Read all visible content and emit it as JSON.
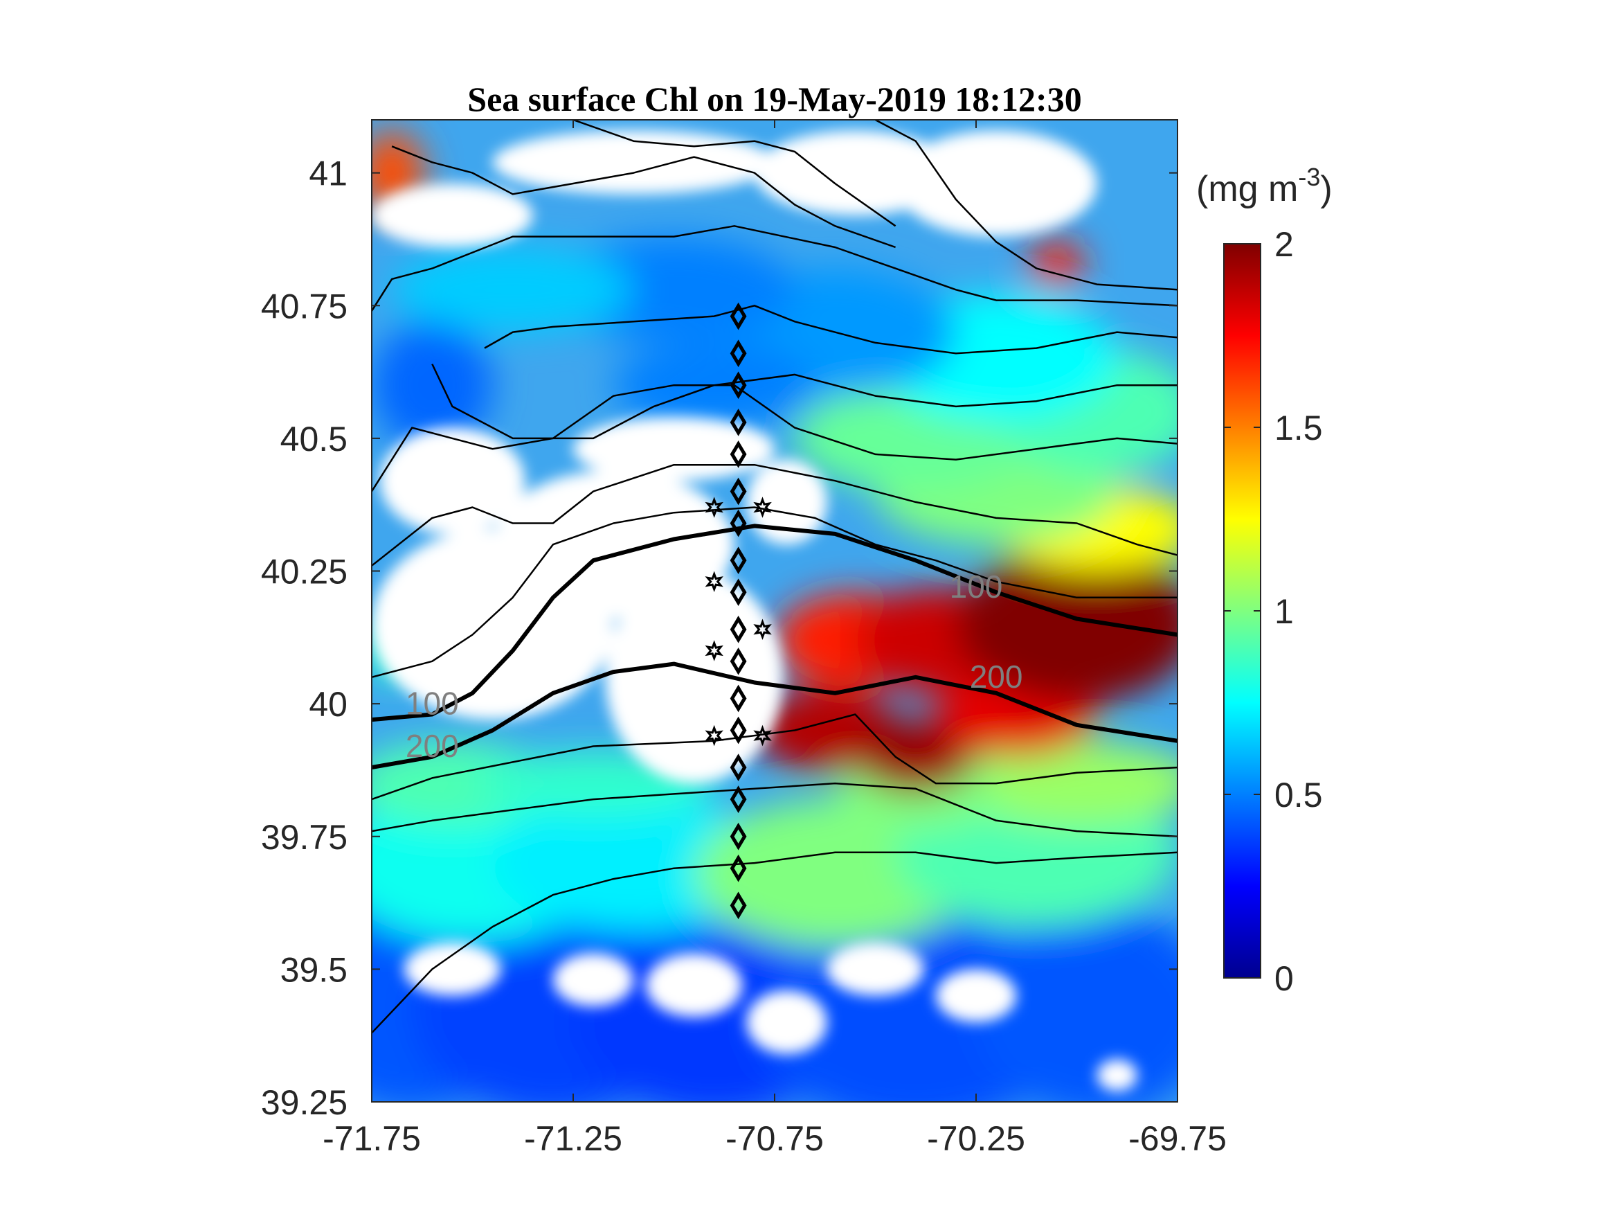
{
  "chart_data": {
    "type": "heatmap",
    "title": "Sea surface Chl on 19-May-2019 18:12:30",
    "xlabel": "",
    "ylabel": "",
    "xlim": [
      -71.75,
      -69.75
    ],
    "ylim": [
      39.25,
      41.1
    ],
    "x_ticks": [
      -71.75,
      -71.25,
      -70.75,
      -70.25,
      -69.75
    ],
    "x_tick_labels": [
      "-71.75",
      "-71.25",
      "-70.75",
      "-70.25",
      "-69.75"
    ],
    "y_ticks": [
      39.25,
      39.5,
      39.75,
      40,
      40.25,
      40.5,
      40.75,
      41
    ],
    "y_tick_labels": [
      "39.25",
      "39.5",
      "39.75",
      "40",
      "40.25",
      "40.5",
      "40.75",
      "41"
    ],
    "colorbar": {
      "units_label": "(mg m",
      "units_exponent": "-3",
      "units_close": ")",
      "colormap": "jet",
      "clim": [
        0,
        2
      ],
      "ticks": [
        0,
        0.5,
        1,
        1.5,
        2
      ],
      "tick_labels": [
        "0",
        "0.5",
        "1",
        "1.5",
        "2"
      ]
    },
    "isobath_labels": [
      {
        "text": "100",
        "lon": -71.6,
        "lat": 39.98
      },
      {
        "text": "200",
        "lon": -71.6,
        "lat": 39.9
      },
      {
        "text": "100",
        "lon": -70.25,
        "lat": 40.2
      },
      {
        "text": "200",
        "lon": -70.2,
        "lat": 40.03
      }
    ],
    "isobaths_thick": [
      {
        "name": "100",
        "points": [
          [
            -71.75,
            39.97
          ],
          [
            -71.6,
            39.98
          ],
          [
            -71.5,
            40.02
          ],
          [
            -71.4,
            40.1
          ],
          [
            -71.3,
            40.2
          ],
          [
            -71.2,
            40.27
          ],
          [
            -71.0,
            40.31
          ],
          [
            -70.8,
            40.335
          ],
          [
            -70.6,
            40.32
          ],
          [
            -70.4,
            40.27
          ],
          [
            -70.2,
            40.21
          ],
          [
            -70.0,
            40.16
          ],
          [
            -69.75,
            40.13
          ]
        ]
      },
      {
        "name": "200",
        "points": [
          [
            -71.75,
            39.88
          ],
          [
            -71.6,
            39.9
          ],
          [
            -71.45,
            39.95
          ],
          [
            -71.3,
            40.02
          ],
          [
            -71.15,
            40.06
          ],
          [
            -71.0,
            40.075
          ],
          [
            -70.8,
            40.04
          ],
          [
            -70.6,
            40.02
          ],
          [
            -70.4,
            40.05
          ],
          [
            -70.2,
            40.02
          ],
          [
            -70.0,
            39.96
          ],
          [
            -69.75,
            39.93
          ]
        ]
      }
    ],
    "isobaths_thin": [
      [
        [
          -71.75,
          39.38
        ],
        [
          -71.6,
          39.5
        ],
        [
          -71.45,
          39.58
        ],
        [
          -71.3,
          39.64
        ],
        [
          -71.15,
          39.67
        ],
        [
          -71.0,
          39.69
        ],
        [
          -70.8,
          39.7
        ],
        [
          -70.6,
          39.72
        ],
        [
          -70.4,
          39.72
        ],
        [
          -70.2,
          39.7
        ],
        [
          -70.0,
          39.71
        ],
        [
          -69.75,
          39.72
        ]
      ],
      [
        [
          -71.75,
          39.76
        ],
        [
          -71.6,
          39.78
        ],
        [
          -71.4,
          39.8
        ],
        [
          -71.2,
          39.82
        ],
        [
          -71.0,
          39.83
        ],
        [
          -70.8,
          39.84
        ],
        [
          -70.6,
          39.85
        ],
        [
          -70.4,
          39.84
        ],
        [
          -70.3,
          39.81
        ],
        [
          -70.2,
          39.78
        ],
        [
          -70.0,
          39.76
        ],
        [
          -69.75,
          39.75
        ]
      ],
      [
        [
          -71.75,
          39.82
        ],
        [
          -71.6,
          39.86
        ],
        [
          -71.4,
          39.89
        ],
        [
          -71.2,
          39.92
        ],
        [
          -70.9,
          39.93
        ],
        [
          -70.7,
          39.95
        ],
        [
          -70.55,
          39.98
        ],
        [
          -70.45,
          39.9
        ],
        [
          -70.35,
          39.85
        ],
        [
          -70.2,
          39.85
        ],
        [
          -70.0,
          39.87
        ],
        [
          -69.75,
          39.88
        ]
      ],
      [
        [
          -71.75,
          40.05
        ],
        [
          -71.6,
          40.08
        ],
        [
          -71.5,
          40.13
        ],
        [
          -71.4,
          40.2
        ],
        [
          -71.3,
          40.3
        ],
        [
          -71.15,
          40.34
        ],
        [
          -71.0,
          40.36
        ],
        [
          -70.8,
          40.37
        ],
        [
          -70.65,
          40.35
        ],
        [
          -70.5,
          40.3
        ],
        [
          -70.35,
          40.27
        ],
        [
          -70.2,
          40.23
        ],
        [
          -70.0,
          40.2
        ],
        [
          -69.75,
          40.2
        ]
      ],
      [
        [
          -71.75,
          40.26
        ],
        [
          -71.6,
          40.35
        ],
        [
          -71.5,
          40.37
        ],
        [
          -71.4,
          40.34
        ],
        [
          -71.3,
          40.34
        ],
        [
          -71.2,
          40.4
        ],
        [
          -71.0,
          40.45
        ],
        [
          -70.8,
          40.45
        ],
        [
          -70.6,
          40.42
        ],
        [
          -70.4,
          40.38
        ],
        [
          -70.2,
          40.35
        ],
        [
          -70.0,
          40.34
        ],
        [
          -69.85,
          40.3
        ],
        [
          -69.75,
          40.28
        ]
      ],
      [
        [
          -71.75,
          40.4
        ],
        [
          -71.65,
          40.52
        ],
        [
          -71.55,
          40.5
        ],
        [
          -71.45,
          40.48
        ],
        [
          -71.3,
          40.5
        ],
        [
          -71.15,
          40.58
        ],
        [
          -71.0,
          40.6
        ],
        [
          -70.85,
          40.6
        ],
        [
          -70.7,
          40.52
        ],
        [
          -70.5,
          40.47
        ],
        [
          -70.3,
          40.46
        ],
        [
          -70.1,
          40.48
        ],
        [
          -69.9,
          40.5
        ],
        [
          -69.75,
          40.49
        ]
      ],
      [
        [
          -71.6,
          40.64
        ],
        [
          -71.55,
          40.56
        ],
        [
          -71.4,
          40.5
        ],
        [
          -71.2,
          40.5
        ],
        [
          -71.05,
          40.56
        ],
        [
          -70.9,
          40.6
        ],
        [
          -70.7,
          40.62
        ],
        [
          -70.5,
          40.58
        ],
        [
          -70.3,
          40.56
        ],
        [
          -70.1,
          40.57
        ],
        [
          -69.9,
          40.6
        ],
        [
          -69.75,
          40.6
        ]
      ],
      [
        [
          -71.47,
          40.67
        ],
        [
          -71.4,
          40.7
        ],
        [
          -71.3,
          40.71
        ],
        [
          -71.1,
          40.72
        ],
        [
          -70.9,
          40.73
        ],
        [
          -70.8,
          40.75
        ],
        [
          -70.7,
          40.72
        ],
        [
          -70.5,
          40.68
        ],
        [
          -70.3,
          40.66
        ],
        [
          -70.1,
          40.67
        ],
        [
          -69.9,
          40.7
        ],
        [
          -69.75,
          40.69
        ]
      ],
      [
        [
          -71.75,
          40.74
        ],
        [
          -71.7,
          40.8
        ],
        [
          -71.6,
          40.82
        ],
        [
          -71.5,
          40.85
        ],
        [
          -71.4,
          40.88
        ],
        [
          -71.2,
          40.88
        ],
        [
          -71.0,
          40.88
        ],
        [
          -70.85,
          40.9
        ],
        [
          -70.6,
          40.86
        ],
        [
          -70.45,
          40.82
        ],
        [
          -70.3,
          40.78
        ],
        [
          -70.2,
          40.76
        ],
        [
          -70.0,
          40.76
        ],
        [
          -69.75,
          40.75
        ]
      ],
      [
        [
          -71.7,
          41.05
        ],
        [
          -71.6,
          41.02
        ],
        [
          -71.5,
          41.0
        ],
        [
          -71.4,
          40.96
        ],
        [
          -71.25,
          40.98
        ],
        [
          -71.1,
          41.0
        ],
        [
          -70.95,
          41.03
        ],
        [
          -70.8,
          41.0
        ],
        [
          -70.7,
          40.94
        ],
        [
          -70.6,
          40.9
        ],
        [
          -70.45,
          40.86
        ]
      ],
      [
        [
          -71.25,
          41.1
        ],
        [
          -71.1,
          41.06
        ],
        [
          -70.95,
          41.05
        ],
        [
          -70.8,
          41.06
        ],
        [
          -70.7,
          41.04
        ],
        [
          -70.6,
          40.98
        ],
        [
          -70.45,
          40.9
        ]
      ],
      [
        [
          -70.5,
          41.1
        ],
        [
          -70.4,
          41.06
        ],
        [
          -70.3,
          40.95
        ],
        [
          -70.2,
          40.87
        ],
        [
          -70.1,
          40.82
        ],
        [
          -69.95,
          40.79
        ],
        [
          -69.75,
          40.78
        ]
      ]
    ],
    "stations_diamond": [
      {
        "lon": -70.84,
        "lat": 40.73
      },
      {
        "lon": -70.84,
        "lat": 40.66
      },
      {
        "lon": -70.84,
        "lat": 40.6
      },
      {
        "lon": -70.84,
        "lat": 40.53
      },
      {
        "lon": -70.84,
        "lat": 40.47
      },
      {
        "lon": -70.84,
        "lat": 40.4
      },
      {
        "lon": -70.84,
        "lat": 40.34
      },
      {
        "lon": -70.84,
        "lat": 40.27
      },
      {
        "lon": -70.84,
        "lat": 40.21
      },
      {
        "lon": -70.84,
        "lat": 40.14
      },
      {
        "lon": -70.84,
        "lat": 40.08
      },
      {
        "lon": -70.84,
        "lat": 40.01
      },
      {
        "lon": -70.84,
        "lat": 39.95
      },
      {
        "lon": -70.84,
        "lat": 39.88
      },
      {
        "lon": -70.84,
        "lat": 39.82
      },
      {
        "lon": -70.84,
        "lat": 39.75
      },
      {
        "lon": -70.84,
        "lat": 39.69
      },
      {
        "lon": -70.84,
        "lat": 39.62
      }
    ],
    "stations_star": [
      {
        "lon": -70.9,
        "lat": 40.37
      },
      {
        "lon": -70.78,
        "lat": 40.37
      },
      {
        "lon": -70.9,
        "lat": 40.23
      },
      {
        "lon": -70.78,
        "lat": 40.14
      },
      {
        "lon": -70.9,
        "lat": 40.1
      },
      {
        "lon": -70.9,
        "lat": 39.94
      },
      {
        "lon": -70.78,
        "lat": 39.94
      }
    ],
    "chl_patches": [
      {
        "lon": -71.65,
        "lat": 39.45,
        "rx": 0.3,
        "ry": 0.22,
        "value": 0.42
      },
      {
        "lon": -71.3,
        "lat": 39.42,
        "rx": 0.35,
        "ry": 0.2,
        "value": 0.38
      },
      {
        "lon": -70.9,
        "lat": 39.4,
        "rx": 0.35,
        "ry": 0.18,
        "value": 0.36
      },
      {
        "lon": -70.4,
        "lat": 39.4,
        "rx": 0.4,
        "ry": 0.2,
        "value": 0.4
      },
      {
        "lon": -69.95,
        "lat": 39.42,
        "rx": 0.3,
        "ry": 0.2,
        "value": 0.42
      },
      {
        "lon": -71.5,
        "lat": 39.7,
        "rx": 0.35,
        "ry": 0.15,
        "value": 0.78
      },
      {
        "lon": -71.1,
        "lat": 39.7,
        "rx": 0.35,
        "ry": 0.13,
        "value": 0.72
      },
      {
        "lon": -70.6,
        "lat": 39.68,
        "rx": 0.35,
        "ry": 0.14,
        "value": 1.0
      },
      {
        "lon": -70.1,
        "lat": 39.72,
        "rx": 0.35,
        "ry": 0.14,
        "value": 0.9
      },
      {
        "lon": -71.55,
        "lat": 39.85,
        "rx": 0.25,
        "ry": 0.08,
        "value": 0.9
      },
      {
        "lon": -71.2,
        "lat": 39.85,
        "rx": 0.3,
        "ry": 0.06,
        "value": 0.85
      },
      {
        "lon": -70.0,
        "lat": 39.85,
        "rx": 0.3,
        "ry": 0.08,
        "value": 1.05
      },
      {
        "lon": -70.4,
        "lat": 39.83,
        "rx": 0.2,
        "ry": 0.07,
        "value": 1.0
      },
      {
        "lon": -70.62,
        "lat": 39.95,
        "rx": 0.18,
        "ry": 0.08,
        "value": 1.9
      },
      {
        "lon": -70.4,
        "lat": 39.9,
        "rx": 0.15,
        "ry": 0.07,
        "value": 1.95
      },
      {
        "lon": -70.15,
        "lat": 39.98,
        "rx": 0.2,
        "ry": 0.08,
        "value": 1.8
      },
      {
        "lon": -70.55,
        "lat": 40.12,
        "rx": 0.2,
        "ry": 0.09,
        "value": 1.7
      },
      {
        "lon": -70.35,
        "lat": 40.12,
        "rx": 0.2,
        "ry": 0.1,
        "value": 1.85
      },
      {
        "lon": -70.0,
        "lat": 40.15,
        "rx": 0.3,
        "ry": 0.15,
        "value": 2.0
      },
      {
        "lon": -69.95,
        "lat": 40.33,
        "rx": 0.25,
        "ry": 0.08,
        "value": 1.25
      },
      {
        "lon": -70.2,
        "lat": 40.4,
        "rx": 0.3,
        "ry": 0.1,
        "value": 1.0
      },
      {
        "lon": -70.4,
        "lat": 40.5,
        "rx": 0.3,
        "ry": 0.1,
        "value": 0.95
      },
      {
        "lon": -69.95,
        "lat": 40.55,
        "rx": 0.25,
        "ry": 0.12,
        "value": 0.9
      },
      {
        "lon": -70.2,
        "lat": 40.65,
        "rx": 0.3,
        "ry": 0.12,
        "value": 0.75
      },
      {
        "lon": -70.6,
        "lat": 40.7,
        "rx": 0.3,
        "ry": 0.12,
        "value": 0.55
      },
      {
        "lon": -71.0,
        "lat": 40.78,
        "rx": 0.3,
        "ry": 0.1,
        "value": 0.5
      },
      {
        "lon": -70.9,
        "lat": 40.6,
        "rx": 0.25,
        "ry": 0.08,
        "value": 0.5
      },
      {
        "lon": -71.6,
        "lat": 40.6,
        "rx": 0.15,
        "ry": 0.12,
        "value": 0.45
      },
      {
        "lon": -71.4,
        "lat": 40.78,
        "rx": 0.3,
        "ry": 0.08,
        "value": 0.65
      },
      {
        "lon": -71.7,
        "lat": 41.0,
        "rx": 0.08,
        "ry": 0.08,
        "value": 1.6
      },
      {
        "lon": -70.05,
        "lat": 40.83,
        "rx": 0.07,
        "ry": 0.04,
        "value": 1.7
      },
      {
        "lon": -71.7,
        "lat": 40.1,
        "rx": 0.06,
        "ry": 0.06,
        "value": 0.85
      }
    ],
    "cloud_patches": [
      {
        "lon": -71.45,
        "lat": 40.15,
        "rx": 0.3,
        "ry": 0.18
      },
      {
        "lon": -71.15,
        "lat": 40.3,
        "rx": 0.3,
        "ry": 0.14
      },
      {
        "lon": -70.95,
        "lat": 40.05,
        "rx": 0.22,
        "ry": 0.2
      },
      {
        "lon": -71.55,
        "lat": 40.42,
        "rx": 0.18,
        "ry": 0.1
      },
      {
        "lon": -71.0,
        "lat": 40.48,
        "rx": 0.25,
        "ry": 0.06
      },
      {
        "lon": -70.72,
        "lat": 40.38,
        "rx": 0.1,
        "ry": 0.08
      },
      {
        "lon": -71.55,
        "lat": 40.92,
        "rx": 0.2,
        "ry": 0.06
      },
      {
        "lon": -70.55,
        "lat": 41.0,
        "rx": 0.25,
        "ry": 0.08
      },
      {
        "lon": -71.1,
        "lat": 41.02,
        "rx": 0.35,
        "ry": 0.06
      },
      {
        "lon": -70.2,
        "lat": 40.98,
        "rx": 0.25,
        "ry": 0.1
      },
      {
        "lon": -71.55,
        "lat": 39.5,
        "rx": 0.12,
        "ry": 0.05
      },
      {
        "lon": -71.2,
        "lat": 39.48,
        "rx": 0.1,
        "ry": 0.05
      },
      {
        "lon": -70.95,
        "lat": 39.47,
        "rx": 0.12,
        "ry": 0.06
      },
      {
        "lon": -70.72,
        "lat": 39.4,
        "rx": 0.1,
        "ry": 0.06
      },
      {
        "lon": -70.5,
        "lat": 39.5,
        "rx": 0.12,
        "ry": 0.05
      },
      {
        "lon": -70.25,
        "lat": 39.45,
        "rx": 0.1,
        "ry": 0.05
      },
      {
        "lon": -69.9,
        "lat": 39.3,
        "rx": 0.05,
        "ry": 0.03
      }
    ]
  }
}
